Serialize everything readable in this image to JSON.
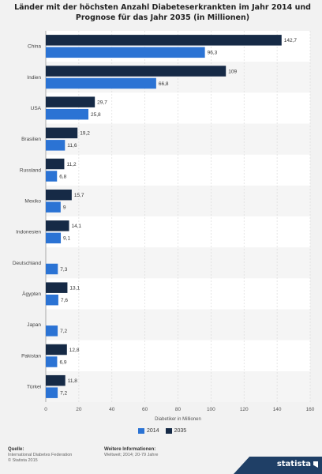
{
  "title": "Länder mit der höchsten Anzahl Diabeteserkrankten im Jahr 2014 und Prognose für das Jahr 2035 (in Millionen)",
  "chart_data": {
    "type": "bar",
    "orientation": "horizontal",
    "categories": [
      "China",
      "Indien",
      "USA",
      "Brasilien",
      "Russland",
      "Mexiko",
      "Indonesien",
      "Deutschland",
      "Ägypten",
      "Japan",
      "Pakistan",
      "Türkei"
    ],
    "series": [
      {
        "name": "2035",
        "color": "#162a46",
        "values": [
          142.7,
          109,
          29.7,
          19.2,
          11.2,
          15.7,
          14.1,
          null,
          13.1,
          null,
          12.8,
          11.8
        ],
        "labels": [
          "142,7",
          "109",
          "29,7",
          "19,2",
          "11,2",
          "15,7",
          "14,1",
          "",
          "13,1",
          "",
          "12,8",
          "11,8"
        ]
      },
      {
        "name": "2014",
        "color": "#2b73d4",
        "values": [
          96.3,
          66.8,
          25.8,
          11.6,
          6.8,
          9,
          9.1,
          7.3,
          7.6,
          7.2,
          6.9,
          7.2
        ],
        "labels": [
          "96,3",
          "66,8",
          "25,8",
          "11,6",
          "6,8",
          "9",
          "9,1",
          "7,3",
          "7,6",
          "7,2",
          "6,9",
          "7,2"
        ]
      }
    ],
    "xlabel": "Diabetiker in Millionen",
    "xlim": [
      0,
      160
    ],
    "ticks": [
      "0",
      "20",
      "40",
      "60",
      "80",
      "100",
      "120",
      "140",
      "160"
    ],
    "grid": true,
    "legend_position": "bottom"
  },
  "legend": [
    {
      "label": "2014",
      "color": "#2b73d4"
    },
    {
      "label": "2035",
      "color": "#162a46"
    }
  ],
  "footer": {
    "source_label": "Quelle:",
    "source_lines": [
      "International Diabetes Federation",
      "© Statista 2015"
    ],
    "info_label": "Weitere Informationen:",
    "info_lines": [
      "Weltweit; 2014; 20-79 Jahre"
    ]
  },
  "brand": "statista"
}
